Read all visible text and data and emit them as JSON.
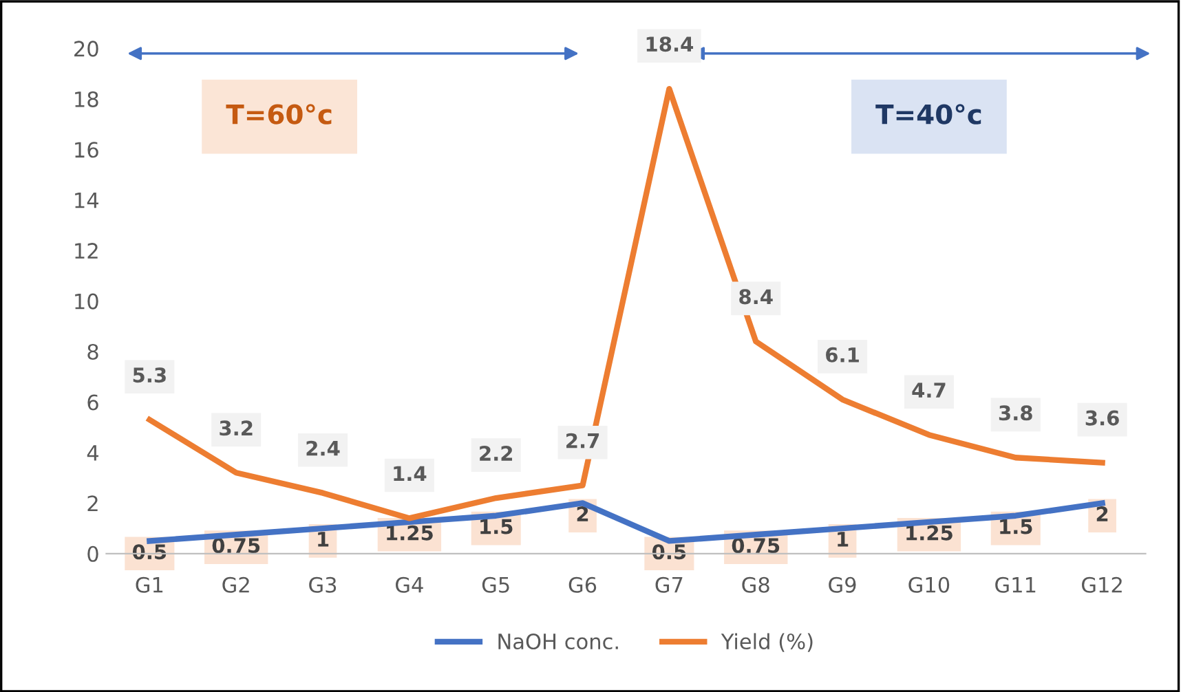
{
  "chart_data": {
    "type": "line",
    "categories": [
      "G1",
      "G2",
      "G3",
      "G4",
      "G5",
      "G6",
      "G7",
      "G8",
      "G9",
      "G10",
      "G11",
      "G12"
    ],
    "series": [
      {
        "name": "NaOH conc.",
        "color": "#4472c4",
        "values": [
          0.5,
          0.75,
          1,
          1.25,
          1.5,
          2,
          0.5,
          0.75,
          1,
          1.25,
          1.5,
          2
        ]
      },
      {
        "name": "Yield (%)",
        "color": "#ed7d31",
        "values": [
          5.3,
          3.2,
          2.4,
          1.4,
          2.2,
          2.7,
          18.4,
          8.4,
          6.1,
          4.7,
          3.8,
          3.6
        ]
      }
    ],
    "ylim": [
      0,
      20
    ],
    "yticks": [
      0,
      2,
      4,
      6,
      8,
      10,
      12,
      14,
      16,
      18,
      20
    ],
    "grid": false,
    "legend": "bottom",
    "data_labels": true,
    "line_style": "solid",
    "annotations": [
      "T=60°c",
      "T=40°c"
    ]
  }
}
